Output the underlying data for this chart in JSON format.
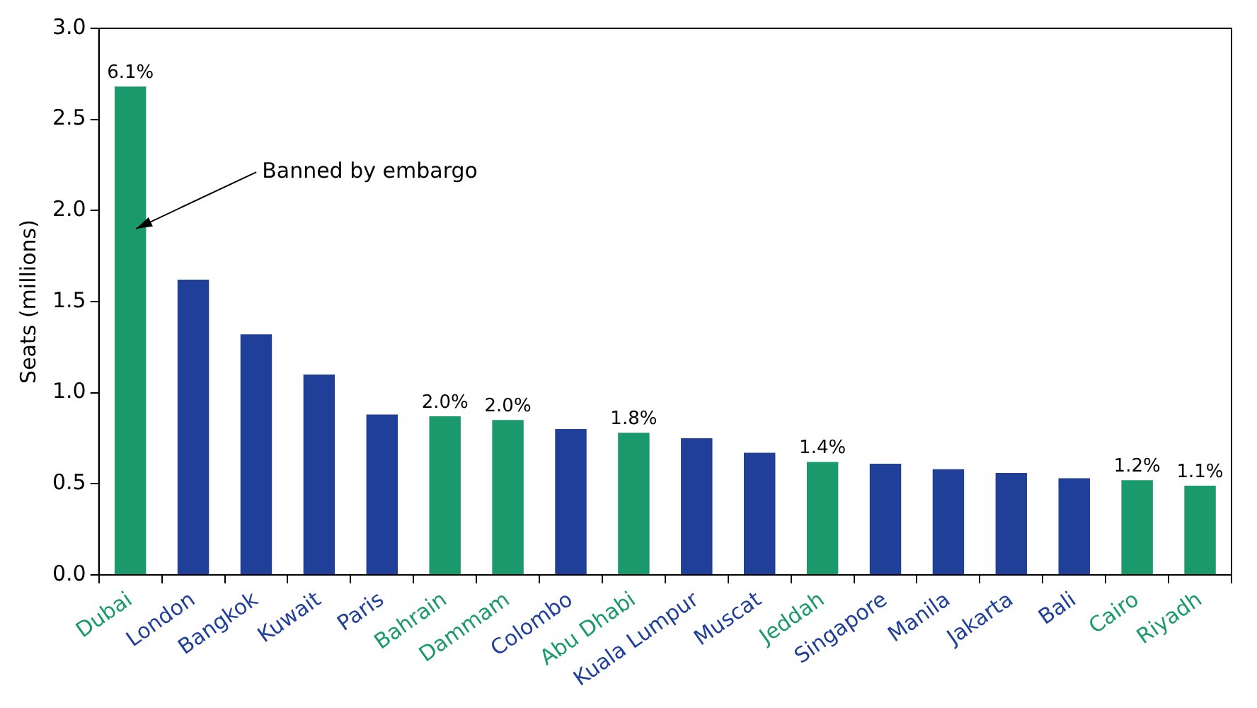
{
  "chart_data": {
    "type": "bar",
    "ylabel": "Seats (millions)",
    "categories": [
      "Dubai",
      "London",
      "Bangkok",
      "Kuwait",
      "Paris",
      "Bahrain",
      "Dammam",
      "Colombo",
      "Abu Dhabi",
      "Kuala Lumpur",
      "Muscat",
      "Jeddah",
      "Singapore",
      "Manila",
      "Jakarta",
      "Bali",
      "Cairo",
      "Riyadh"
    ],
    "values": [
      2.68,
      1.62,
      1.32,
      1.1,
      0.88,
      0.87,
      0.85,
      0.8,
      0.78,
      0.75,
      0.67,
      0.62,
      0.61,
      0.58,
      0.56,
      0.53,
      0.52,
      0.49
    ],
    "colors": [
      "#1a9a6c",
      "#1f3f99",
      "#1f3f99",
      "#1f3f99",
      "#1f3f99",
      "#1a9a6c",
      "#1a9a6c",
      "#1f3f99",
      "#1a9a6c",
      "#1f3f99",
      "#1f3f99",
      "#1a9a6c",
      "#1f3f99",
      "#1f3f99",
      "#1f3f99",
      "#1f3f99",
      "#1a9a6c",
      "#1a9a6c"
    ],
    "ylim": [
      0,
      3
    ],
    "yticks": [
      {
        "value": 0,
        "label": "0.0"
      },
      0.5,
      {
        "value": 1,
        "label": "1.0"
      },
      1.5,
      {
        "value": 2,
        "label": "2.0"
      },
      2.5,
      {
        "value": 3,
        "label": "3.0"
      }
    ],
    "annotations": [
      "Banned by embargo",
      {
        "text": "6.1%",
        "x": "Dubai",
        "y": 2.68
      },
      {
        "text": "2.0%",
        "x": "Bahrain",
        "y": 0.87
      },
      {
        "text": "2.0%",
        "x": "Dammam",
        "y": 0.85
      },
      {
        "text": "1.8%",
        "x": "Abu Dhabi",
        "y": 0.78
      },
      {
        "text": "1.4%",
        "x": "Jeddah",
        "y": 0.62
      },
      {
        "text": "1.2%",
        "x": "Cairo",
        "y": 0.52
      },
      {
        "text": "1.1%",
        "x": "Riyadh",
        "y": 0.49
      }
    ],
    "grid": false,
    "legend": false
  }
}
